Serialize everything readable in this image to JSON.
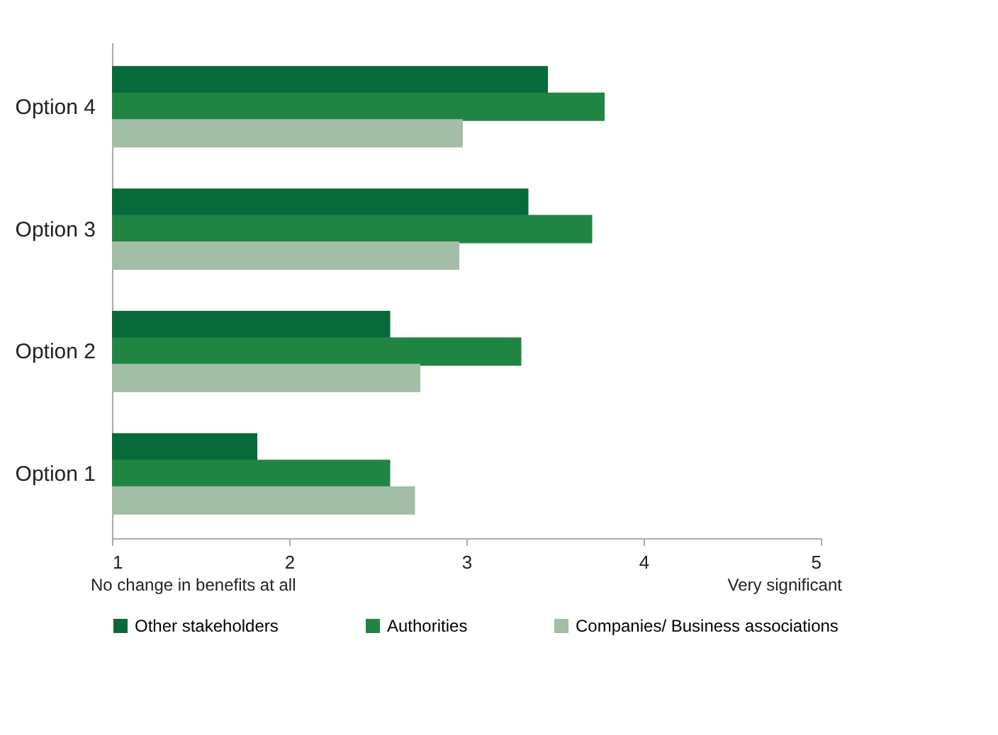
{
  "chart_data": {
    "type": "bar",
    "orientation": "horizontal",
    "categories": [
      "Option 4",
      "Option 3",
      "Option 2",
      "Option 1"
    ],
    "series": [
      {
        "name": "Other stakeholders",
        "color": "#08693a",
        "values": [
          3.46,
          3.35,
          2.57,
          1.82
        ]
      },
      {
        "name": "Authorities",
        "color": "#208543",
        "values": [
          3.78,
          3.71,
          3.31,
          2.57
        ]
      },
      {
        "name": "Companies/ Business associations",
        "color": "#a3bda6",
        "values": [
          2.98,
          2.96,
          2.74,
          2.71
        ]
      }
    ],
    "xlim": [
      1,
      5
    ],
    "xticks": [
      1,
      2,
      3,
      4,
      5
    ],
    "annotations": [
      "No change in benefits at all",
      "Very significant"
    ],
    "grid": false,
    "legend": "bottom"
  }
}
